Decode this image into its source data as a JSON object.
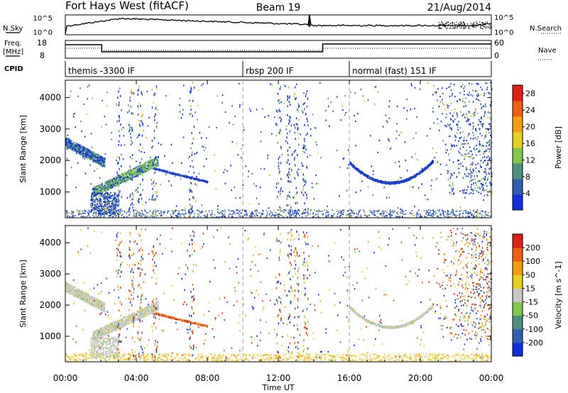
{
  "header": {
    "title": "Fort Hays West (fitACF)",
    "beam": "Beam 19",
    "date": "21/Aug/2014"
  },
  "summary_panels": {
    "nsky_label": "N.Sky",
    "nsearch_label": "N.Search",
    "count_ticks": [
      "10^5",
      "10^0"
    ],
    "freq_label": "Freq.",
    "freq_unit": "[MHz]",
    "freq_ticks": [
      "18",
      "8"
    ],
    "nave_label": "Nave",
    "nave_ticks": [
      "60",
      "0"
    ],
    "cpid_label": "CPID",
    "cpid_segments": [
      {
        "label": "themis -3300 IF",
        "start_hour": 0
      },
      {
        "label": "rbsp 200 IF",
        "start_hour": 10
      },
      {
        "label": "normal (fast) 151 IF",
        "start_hour": 16
      }
    ]
  },
  "chart_data": [
    {
      "type": "heatmap",
      "title": "",
      "xlabel": "Time UT",
      "ylabel": "Slant Range [km]",
      "xlim_hours": [
        0,
        24
      ],
      "ylim": [
        180,
        4550
      ],
      "x_ticks": [
        "00:00",
        "04:00",
        "08:00",
        "12:00",
        "16:00",
        "20:00",
        "00:00"
      ],
      "y_ticks": [
        1000,
        2000,
        3000,
        4000
      ],
      "colorbar": {
        "label": "Power [dB]",
        "ticks": [
          4,
          8,
          12,
          16,
          20,
          24,
          28
        ],
        "range": [
          0,
          30
        ],
        "colors": [
          "#1030e0",
          "#2f5fb0",
          "#4a8f80",
          "#7fc84a",
          "#e8d020",
          "#f5a010",
          "#ee6010",
          "#e02010"
        ]
      }
    },
    {
      "type": "heatmap",
      "title": "",
      "xlabel": "Time UT",
      "ylabel": "Slant Range [km]",
      "xlim_hours": [
        0,
        24
      ],
      "ylim": [
        180,
        4550
      ],
      "x_ticks": [
        "00:00",
        "04:00",
        "08:00",
        "12:00",
        "16:00",
        "20:00",
        "00:00"
      ],
      "y_ticks": [
        1000,
        2000,
        3000,
        4000
      ],
      "colorbar": {
        "label": "Velocity [m s^-1]",
        "ticks": [
          200,
          100,
          50,
          15,
          -15,
          -50,
          -100,
          -200
        ],
        "colors": [
          "#1030e0",
          "#2f5fb0",
          "#4a8f80",
          "#7fc84a",
          "#c8c8c8",
          "#e8d020",
          "#f5a010",
          "#ee6010",
          "#e02010"
        ]
      }
    }
  ],
  "colors": {
    "dashed_line": "#a0a0a0",
    "ground_scatter": "#c0c0c0"
  }
}
